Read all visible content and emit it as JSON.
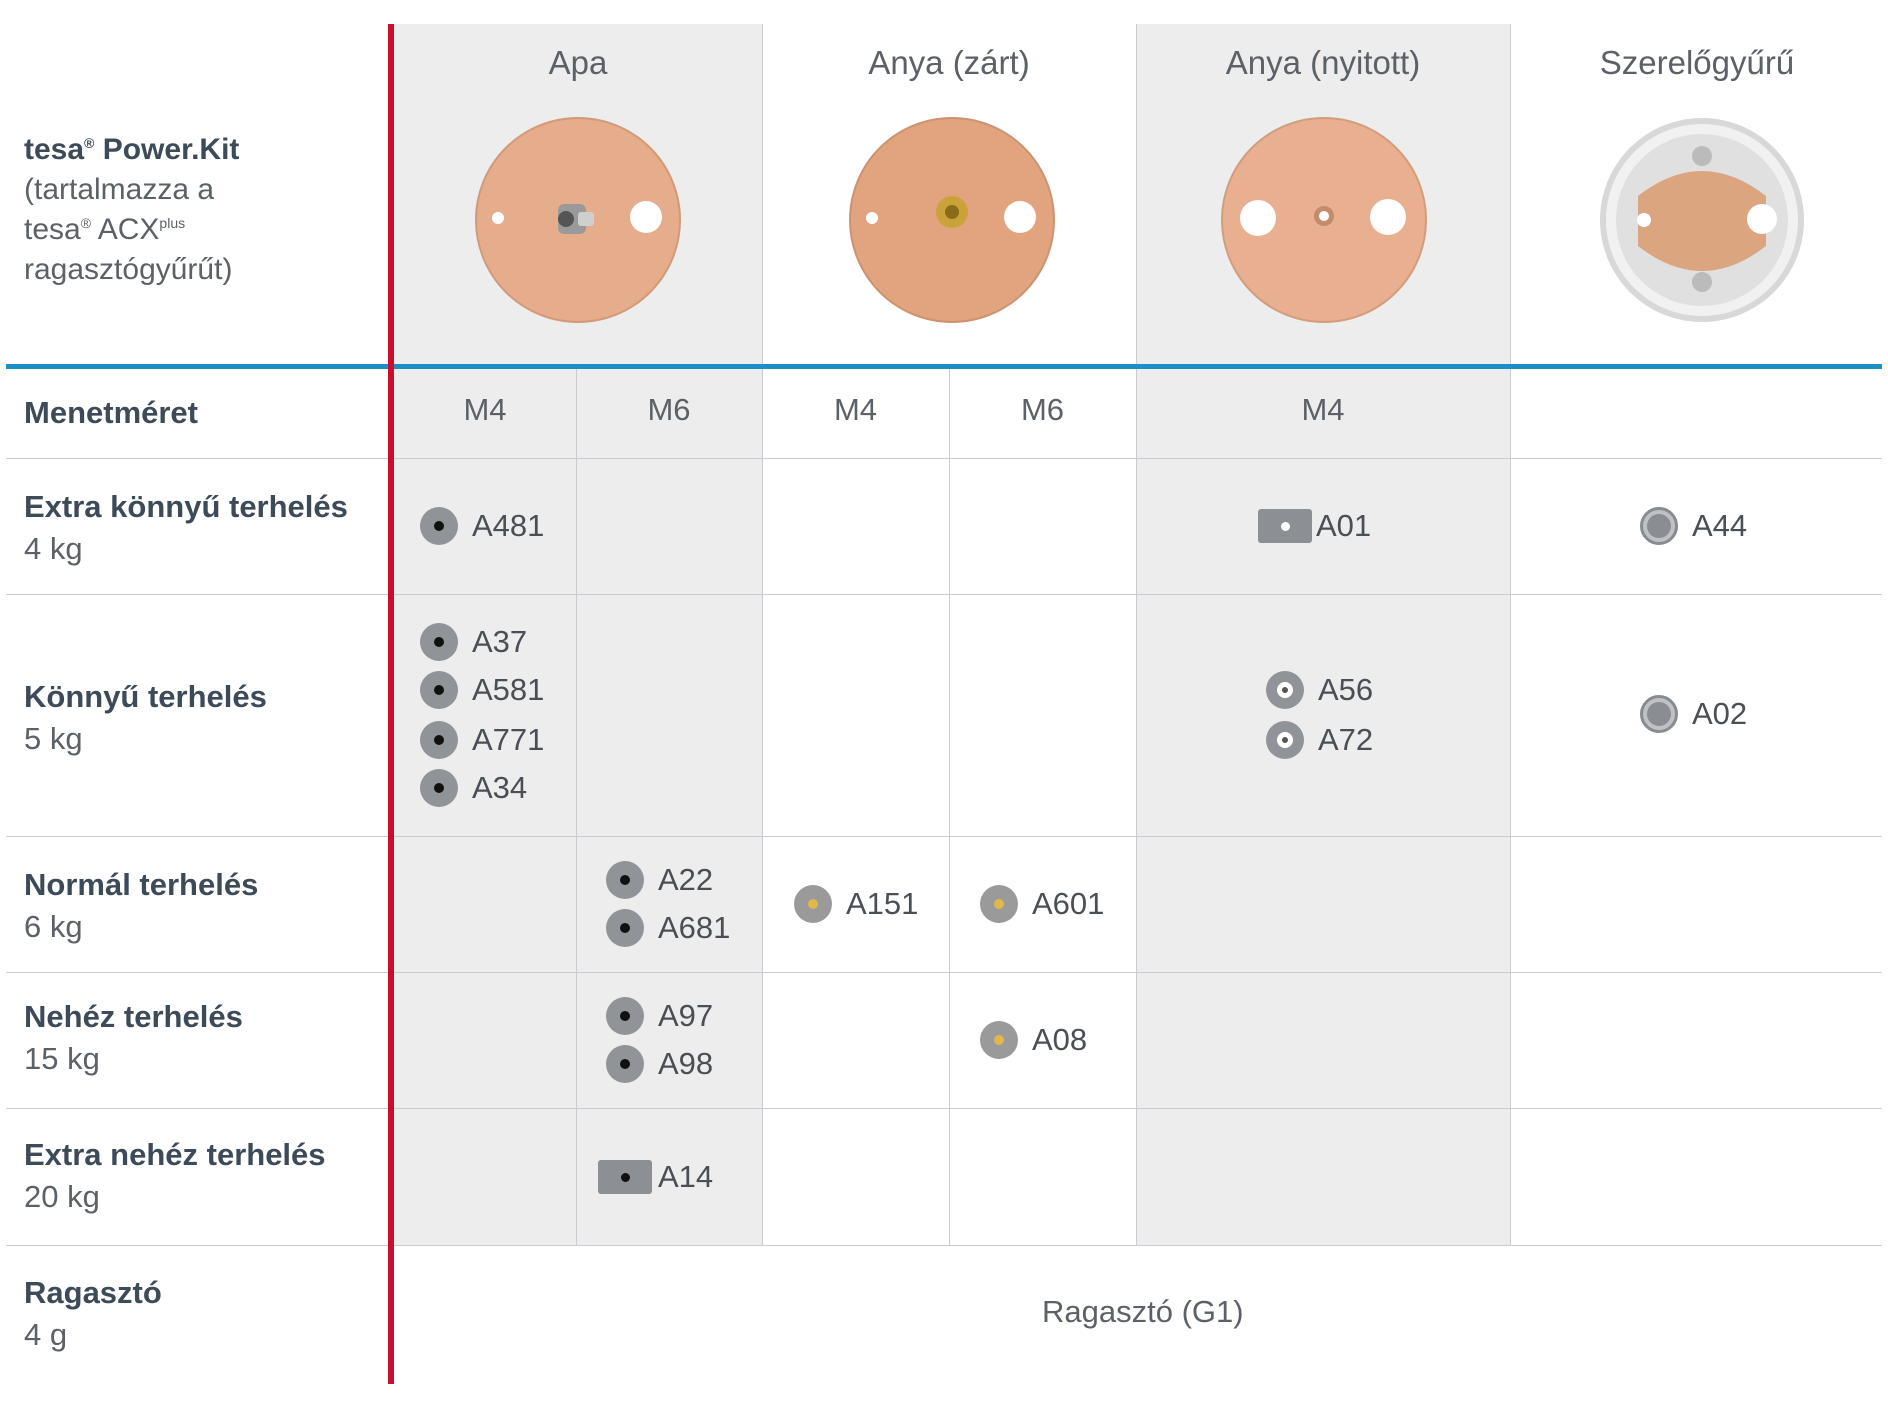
{
  "header": {
    "product_brand": "tesa",
    "reg_mark": "®",
    "product_name": " Power.Kit",
    "product_desc_1": "(tartalmazza a",
    "product_desc_2_a": "tesa",
    "product_desc_2_b": " ACX",
    "product_desc_2_sup": "plus",
    "product_desc_3": "ragasztógyűrűt)",
    "columns": [
      "Apa",
      "Anya (zárt)",
      "Anya (nyitott)",
      "Szerelőgyűrű"
    ],
    "column_icons": [
      "male-thread-disc",
      "closed-nut-disc",
      "open-nut-disc",
      "mounting-ring"
    ]
  },
  "threads": {
    "label": "Menetméret",
    "values": [
      "M4",
      "M6",
      "M4",
      "M6",
      "M4"
    ]
  },
  "rows": [
    {
      "title": "Extra könnyű terhelés",
      "weight": "4 kg"
    },
    {
      "title": "Könnyű terhelés",
      "weight": "5 kg"
    },
    {
      "title": "Normál terhelés",
      "weight": "6 kg"
    },
    {
      "title": "Nehéz terhelés",
      "weight": "15 kg"
    },
    {
      "title": "Extra nehéz terhelés",
      "weight": "20 kg"
    },
    {
      "title": "Ragasztó",
      "weight": "4 g"
    }
  ],
  "codes": {
    "a481": "A481",
    "a01": "A01",
    "a44": "A44",
    "a37": "A37",
    "a581": "A581",
    "a771": "A771",
    "a34": "A34",
    "a56": "A56",
    "a72": "A72",
    "a02": "A02",
    "a22": "A22",
    "a681": "A681",
    "a151": "A151",
    "a601": "A601",
    "a97": "A97",
    "a98": "A98",
    "a08": "A08",
    "a14": "A14"
  },
  "adhesive": "Ragasztó (G1)",
  "colors": {
    "accent_red": "#c8102e",
    "accent_blue": "#1c8fc8",
    "copper": "#e8b08f",
    "shade": "#ededed"
  }
}
